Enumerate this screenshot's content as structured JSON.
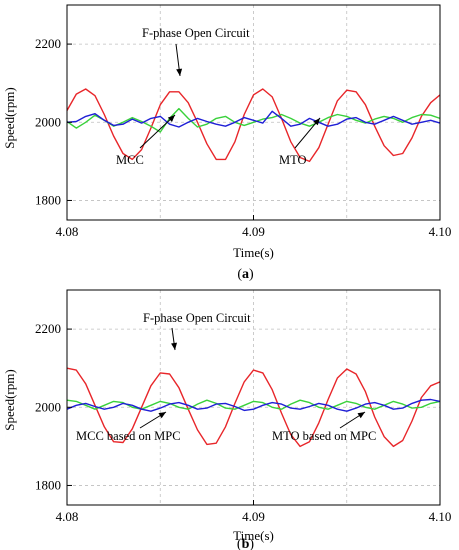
{
  "colors": {
    "red": "#e8262a",
    "green": "#39d13b",
    "blue": "#1f1fd6",
    "grid": "#bfbfbf"
  },
  "chart_data": [
    {
      "type": "line",
      "panel_caption_prefix": "(",
      "panel_letter": "a",
      "panel_caption_suffix": ")",
      "xlabel": "Time(s)",
      "ylabel": "Speed(rpm)",
      "xlim": [
        4.08,
        4.1
      ],
      "ylim": [
        1750,
        2300
      ],
      "xticks": [
        "4.08",
        "4.09",
        "4.10"
      ],
      "yticks": [
        "2200",
        "2000",
        "1800"
      ],
      "grid": true,
      "series": [
        {
          "name": "F-phase Open Circuit",
          "color": "red",
          "x": [
            4.08,
            4.0805,
            4.081,
            4.0815,
            4.082,
            4.0825,
            4.083,
            4.0835,
            4.084,
            4.0845,
            4.085,
            4.0855,
            4.086,
            4.0865,
            4.087,
            4.0875,
            4.088,
            4.0885,
            4.089,
            4.0895,
            4.09,
            4.0905,
            4.091,
            4.0915,
            4.092,
            4.0925,
            4.093,
            4.0935,
            4.094,
            4.0945,
            4.095,
            4.0955,
            4.096,
            4.0965,
            4.097,
            4.0975,
            4.098,
            4.0985,
            4.099,
            4.0995,
            4.1
          ],
          "values": [
            2030,
            2072,
            2085,
            2068,
            2020,
            1965,
            1920,
            1905,
            1930,
            1985,
            2045,
            2078,
            2078,
            2050,
            2000,
            1945,
            1905,
            1905,
            1950,
            2020,
            2070,
            2085,
            2065,
            2010,
            1950,
            1910,
            1900,
            1935,
            1995,
            2055,
            2082,
            2078,
            2045,
            1990,
            1940,
            1915,
            1920,
            1960,
            2015,
            2050,
            2070
          ]
        },
        {
          "name": "MCC",
          "color": "green",
          "x": [
            4.08,
            4.0805,
            4.081,
            4.0815,
            4.082,
            4.0825,
            4.083,
            4.0835,
            4.084,
            4.0845,
            4.085,
            4.0855,
            4.086,
            4.0865,
            4.087,
            4.0875,
            4.088,
            4.0885,
            4.089,
            4.0895,
            4.09,
            4.0905,
            4.091,
            4.0915,
            4.092,
            4.0925,
            4.093,
            4.0935,
            4.094,
            4.0945,
            4.095,
            4.0955,
            4.096,
            4.0965,
            4.097,
            4.0975,
            4.098,
            4.0985,
            4.099,
            4.0995,
            4.1
          ],
          "values": [
            2002,
            1985,
            2000,
            2018,
            2005,
            1990,
            2000,
            2012,
            2002,
            1990,
            1975,
            2010,
            2035,
            2010,
            1988,
            1995,
            2010,
            2015,
            2000,
            1992,
            2000,
            2008,
            2012,
            2020,
            2010,
            1998,
            1990,
            2000,
            2012,
            2020,
            2015,
            2005,
            1998,
            2008,
            2015,
            2010,
            2000,
            2012,
            2020,
            2018,
            2010
          ]
        },
        {
          "name": "MTO",
          "color": "blue",
          "x": [
            4.08,
            4.0805,
            4.081,
            4.0815,
            4.082,
            4.0825,
            4.083,
            4.0835,
            4.084,
            4.0845,
            4.085,
            4.0855,
            4.086,
            4.0865,
            4.087,
            4.0875,
            4.088,
            4.0885,
            4.089,
            4.0895,
            4.09,
            4.0905,
            4.091,
            4.0915,
            4.092,
            4.0925,
            4.093,
            4.0935,
            4.094,
            4.0945,
            4.095,
            4.0955,
            4.096,
            4.0965,
            4.097,
            4.0975,
            4.098,
            4.0985,
            4.099,
            4.0995,
            4.1
          ],
          "values": [
            2000,
            2002,
            2015,
            2022,
            2005,
            1992,
            1995,
            2008,
            1998,
            2010,
            2015,
            1995,
            1988,
            2000,
            2010,
            2002,
            1995,
            1990,
            2000,
            2012,
            2005,
            1998,
            2028,
            2010,
            1990,
            1995,
            2010,
            2000,
            1990,
            1995,
            2008,
            2012,
            2000,
            1995,
            2005,
            2015,
            2005,
            1995,
            2000,
            2005,
            1998
          ]
        }
      ],
      "annotations": [
        {
          "text": "F-phase Open Circuit",
          "series": "red"
        },
        {
          "text": "MCC",
          "series": "green"
        },
        {
          "text": "MTO",
          "series": "blue"
        }
      ]
    },
    {
      "type": "line",
      "panel_caption_prefix": "(",
      "panel_letter": "b",
      "panel_caption_suffix": ")",
      "xlabel": "Time(s)",
      "ylabel": "Speed(rpm)",
      "xlim": [
        4.08,
        4.1
      ],
      "ylim": [
        1750,
        2300
      ],
      "xticks": [
        "4.08",
        "4.09",
        "4.10"
      ],
      "yticks": [
        "2200",
        "2000",
        "1800"
      ],
      "grid": true,
      "series": [
        {
          "name": "F-phase Open Circuit",
          "color": "red",
          "x": [
            4.08,
            4.0805,
            4.081,
            4.0815,
            4.082,
            4.0825,
            4.083,
            4.0835,
            4.084,
            4.0845,
            4.085,
            4.0855,
            4.086,
            4.0865,
            4.087,
            4.0875,
            4.088,
            4.0885,
            4.089,
            4.0895,
            4.09,
            4.0905,
            4.091,
            4.0915,
            4.092,
            4.0925,
            4.093,
            4.0935,
            4.094,
            4.0945,
            4.095,
            4.0955,
            4.096,
            4.0965,
            4.097,
            4.0975,
            4.098,
            4.0985,
            4.099,
            4.0995,
            4.1
          ],
          "values": [
            2100,
            2095,
            2060,
            2005,
            1950,
            1912,
            1910,
            1945,
            2000,
            2055,
            2088,
            2085,
            2050,
            1995,
            1942,
            1905,
            1908,
            1950,
            2010,
            2065,
            2095,
            2088,
            2045,
            1985,
            1930,
            1900,
            1912,
            1960,
            2020,
            2075,
            2098,
            2085,
            2040,
            1975,
            1925,
            1900,
            1915,
            1965,
            2025,
            2055,
            2065
          ]
        },
        {
          "name": "MCC based on MPC",
          "color": "green",
          "x": [
            4.08,
            4.0805,
            4.081,
            4.0815,
            4.082,
            4.0825,
            4.083,
            4.0835,
            4.084,
            4.0845,
            4.085,
            4.0855,
            4.086,
            4.0865,
            4.087,
            4.0875,
            4.088,
            4.0885,
            4.089,
            4.0895,
            4.09,
            4.0905,
            4.091,
            4.0915,
            4.092,
            4.0925,
            4.093,
            4.0935,
            4.094,
            4.0945,
            4.095,
            4.0955,
            4.096,
            4.0965,
            4.097,
            4.0975,
            4.098,
            4.0985,
            4.099,
            4.0995,
            4.1
          ],
          "values": [
            2018,
            2015,
            2005,
            1995,
            2005,
            2015,
            2012,
            2000,
            1995,
            2005,
            2015,
            2010,
            2000,
            1995,
            2008,
            2018,
            2010,
            1998,
            1995,
            2005,
            2015,
            2012,
            2000,
            1995,
            2008,
            2018,
            2012,
            2000,
            1995,
            2005,
            2015,
            2010,
            2000,
            1995,
            2005,
            2015,
            2008,
            1998,
            2000,
            2010,
            2015
          ]
        },
        {
          "name": "MTO based on MPC",
          "color": "blue",
          "x": [
            4.08,
            4.0805,
            4.081,
            4.0815,
            4.082,
            4.0825,
            4.083,
            4.0835,
            4.084,
            4.0845,
            4.085,
            4.0855,
            4.086,
            4.0865,
            4.087,
            4.0875,
            4.088,
            4.0885,
            4.089,
            4.0895,
            4.09,
            4.0905,
            4.091,
            4.0915,
            4.092,
            4.0925,
            4.093,
            4.0935,
            4.094,
            4.0945,
            4.095,
            4.0955,
            4.096,
            4.0965,
            4.097,
            4.0975,
            4.098,
            4.0985,
            4.099,
            4.0995,
            4.1
          ],
          "values": [
            1995,
            2005,
            2010,
            2002,
            1995,
            2000,
            2010,
            2005,
            1995,
            1990,
            1998,
            2008,
            2012,
            2005,
            1995,
            1998,
            2008,
            2010,
            2002,
            1992,
            1995,
            2005,
            2012,
            2008,
            1998,
            1995,
            2002,
            2010,
            2005,
            1995,
            1990,
            1998,
            2008,
            2012,
            2005,
            1995,
            1998,
            2010,
            2018,
            2020,
            2015
          ]
        }
      ],
      "annotations": [
        {
          "text": "F-phase Open Circuit",
          "series": "red"
        },
        {
          "text": "MCC based on MPC",
          "series": "green"
        },
        {
          "text": "MTO based on MPC",
          "series": "blue"
        }
      ]
    }
  ]
}
